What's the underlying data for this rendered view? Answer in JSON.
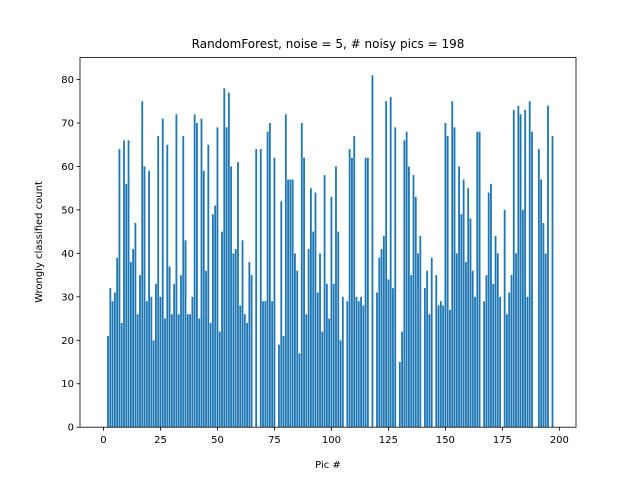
{
  "chart_data": {
    "type": "bar",
    "title": "RandomForest, noise = 5, # noisy pics = 198",
    "xlabel": "Pic #",
    "ylabel": "Wrongly classified count",
    "color": "#1f77b4",
    "bar_width": 0.8,
    "x": [
      0,
      1,
      2,
      3,
      4,
      5,
      6,
      7,
      8,
      9,
      10,
      11,
      12,
      13,
      14,
      15,
      16,
      17,
      18,
      19,
      20,
      21,
      22,
      23,
      24,
      25,
      26,
      27,
      28,
      29,
      30,
      31,
      32,
      33,
      34,
      35,
      36,
      37,
      38,
      39,
      40,
      41,
      42,
      43,
      44,
      45,
      46,
      47,
      48,
      49,
      50,
      51,
      52,
      53,
      54,
      55,
      56,
      57,
      58,
      59,
      60,
      61,
      62,
      63,
      64,
      65,
      66,
      67,
      68,
      69,
      70,
      71,
      72,
      73,
      74,
      75,
      76,
      77,
      78,
      79,
      80,
      81,
      82,
      83,
      84,
      85,
      86,
      87,
      88,
      89,
      90,
      91,
      92,
      93,
      94,
      95,
      96,
      97,
      98,
      99,
      100,
      101,
      102,
      103,
      104,
      105,
      106,
      107,
      108,
      109,
      110,
      111,
      112,
      113,
      114,
      115,
      116,
      117,
      118,
      119,
      120,
      121,
      122,
      123,
      124,
      125,
      126,
      127,
      128,
      129,
      130,
      131,
      132,
      133,
      134,
      135,
      136,
      137,
      138,
      139,
      140,
      141,
      142,
      143,
      144,
      145,
      146,
      147,
      148,
      149,
      150,
      151,
      152,
      153,
      154,
      155,
      156,
      157,
      158,
      159,
      160,
      161,
      162,
      163,
      164,
      165,
      166,
      167,
      168,
      169,
      170,
      171,
      172,
      173,
      174,
      175,
      176,
      177,
      178,
      179,
      180,
      181,
      182,
      183,
      184,
      185,
      186,
      187,
      188,
      189,
      190,
      191,
      192,
      193,
      194,
      195,
      196,
      197
    ],
    "values": [
      0,
      0,
      21,
      32,
      29,
      31,
      39,
      64,
      24,
      66,
      56,
      66,
      38,
      41,
      47,
      26,
      35,
      75,
      60,
      29,
      59,
      30,
      20,
      33,
      67,
      30,
      71,
      25,
      65,
      37,
      26,
      33,
      72,
      26,
      35,
      67,
      43,
      26,
      26,
      30,
      72,
      70,
      25,
      71,
      59,
      36,
      65,
      24,
      49,
      51,
      69,
      22,
      45,
      78,
      69,
      77,
      60,
      40,
      41,
      61,
      28,
      43,
      26,
      24,
      38,
      35,
      0,
      64,
      0,
      64,
      29,
      29,
      68,
      70,
      29,
      62,
      0,
      19,
      52,
      21,
      72,
      57,
      57,
      57,
      40,
      36,
      17,
      70,
      62,
      26,
      41,
      55,
      45,
      54,
      31,
      40,
      22,
      58,
      33,
      25,
      53,
      33,
      60,
      45,
      20,
      30,
      0,
      29,
      64,
      62,
      67,
      30,
      29,
      30,
      28,
      62,
      62,
      0,
      81,
      0,
      31,
      39,
      41,
      44,
      75,
      34,
      76,
      32,
      69,
      0,
      15,
      22,
      66,
      68,
      60,
      35,
      58,
      53,
      40,
      44,
      0,
      32,
      36,
      26,
      39,
      0,
      35,
      28,
      29,
      28,
      70,
      67,
      27,
      75,
      69,
      40,
      60,
      49,
      57,
      38,
      55,
      48,
      36,
      30,
      68,
      68,
      0,
      29,
      35,
      54,
      56,
      33,
      44,
      40,
      30,
      0,
      50,
      26,
      31,
      35,
      73,
      40,
      74,
      72,
      50,
      73,
      30,
      75,
      68,
      0,
      0,
      64,
      57,
      47,
      40,
      74,
      0,
      67
    ],
    "xlim": [
      -10.3,
      207.3
    ],
    "xticks": [
      0,
      25,
      50,
      75,
      100,
      125,
      150,
      175,
      200
    ],
    "ylim": [
      0,
      85.05
    ],
    "yticks": [
      0,
      10,
      20,
      30,
      40,
      50,
      60,
      70,
      80
    ]
  }
}
